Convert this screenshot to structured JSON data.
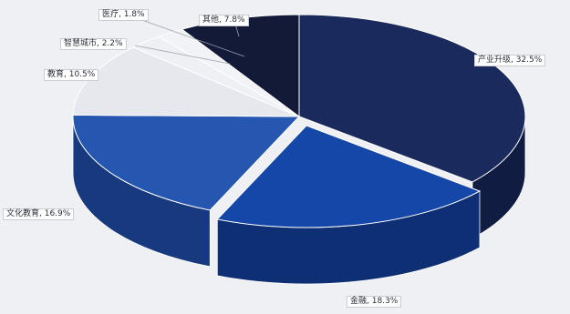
{
  "chart_data": {
    "type": "pie",
    "style": "3d-exploded",
    "slices": [
      {
        "label": "产业升级",
        "value": 32.5,
        "display": "产业升级, 32.5%",
        "color": "#1a2a5c",
        "side": "#101c42"
      },
      {
        "label": "金融",
        "value": 18.3,
        "display": "金融, 18.3%",
        "color": "#1547a8",
        "side": "#0e2f74"
      },
      {
        "label": "文化教育",
        "value": 16.9,
        "display": "文化教育, 16.9%",
        "color": "#2556b0",
        "side": "#173a7e"
      },
      {
        "label": "教育",
        "value": 10.5,
        "display": "教育, 10.5%",
        "color": "#e6e8ee",
        "side": "#c4c8d2"
      },
      {
        "label": "智慧城市",
        "value": 2.2,
        "display": "智慧城市, 2.2%",
        "color": "#eef0f4",
        "side": "#cfd3dc"
      },
      {
        "label": "医疗",
        "value": 1.8,
        "display": "医疗, 1.8%",
        "color": "#f2f3f6",
        "side": "#d3d6de"
      },
      {
        "label": "其他",
        "value": 7.8,
        "display": "其他, 7.8%",
        "color": "#121a38",
        "side": "#0a1028"
      }
    ]
  }
}
